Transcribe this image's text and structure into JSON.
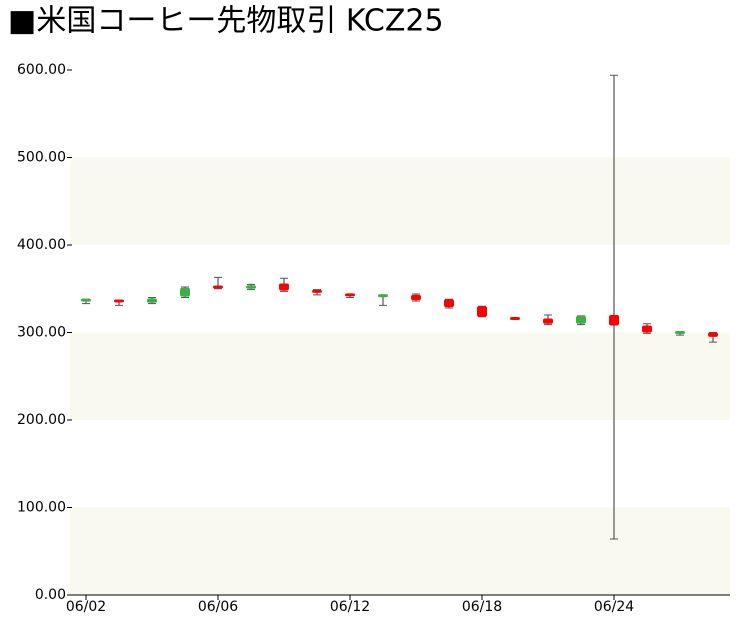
{
  "chart_data": {
    "type": "candlestick",
    "title": "■米国コーヒー先物取引  KCZ25",
    "categories": [
      "06/02",
      null,
      null,
      null,
      "06/06",
      null,
      null,
      null,
      "06/12",
      null,
      null,
      null,
      "06/18",
      null,
      null,
      null,
      "06/24",
      null,
      null,
      null
    ],
    "open": [
      335,
      336,
      334,
      341,
      352,
      350,
      356,
      347,
      343,
      340,
      343,
      338,
      330,
      316,
      316,
      310,
      320,
      308,
      298,
      300
    ],
    "high": [
      338,
      337,
      340,
      352,
      363,
      355,
      362,
      349,
      343,
      343,
      344,
      338,
      330,
      316,
      320,
      319,
      594,
      310,
      301,
      300
    ],
    "low": [
      333,
      331,
      333,
      340,
      350,
      349,
      347,
      343,
      340,
      331,
      336,
      328,
      318,
      315,
      309,
      309,
      64,
      299,
      297,
      289
    ],
    "close": [
      337,
      334,
      339,
      351,
      350,
      354,
      348,
      344,
      340,
      342,
      337,
      329,
      318,
      315,
      310,
      319,
      308,
      300,
      300,
      295
    ],
    "up_color": "#3cb043",
    "down_color": "#ff0000",
    "wick_color": "#555555",
    "band_color": "#f9f9ef",
    "ylim": [
      0,
      600
    ],
    "yticks": [
      {
        "value": 0,
        "label": "0.00"
      },
      {
        "value": 100,
        "label": "100.00"
      },
      {
        "value": 200,
        "label": "200.00"
      },
      {
        "value": 300,
        "label": "300.00"
      },
      {
        "value": 400,
        "label": "400.00"
      },
      {
        "value": 500,
        "label": "500.00"
      },
      {
        "value": 600,
        "label": "600.00"
      }
    ]
  }
}
